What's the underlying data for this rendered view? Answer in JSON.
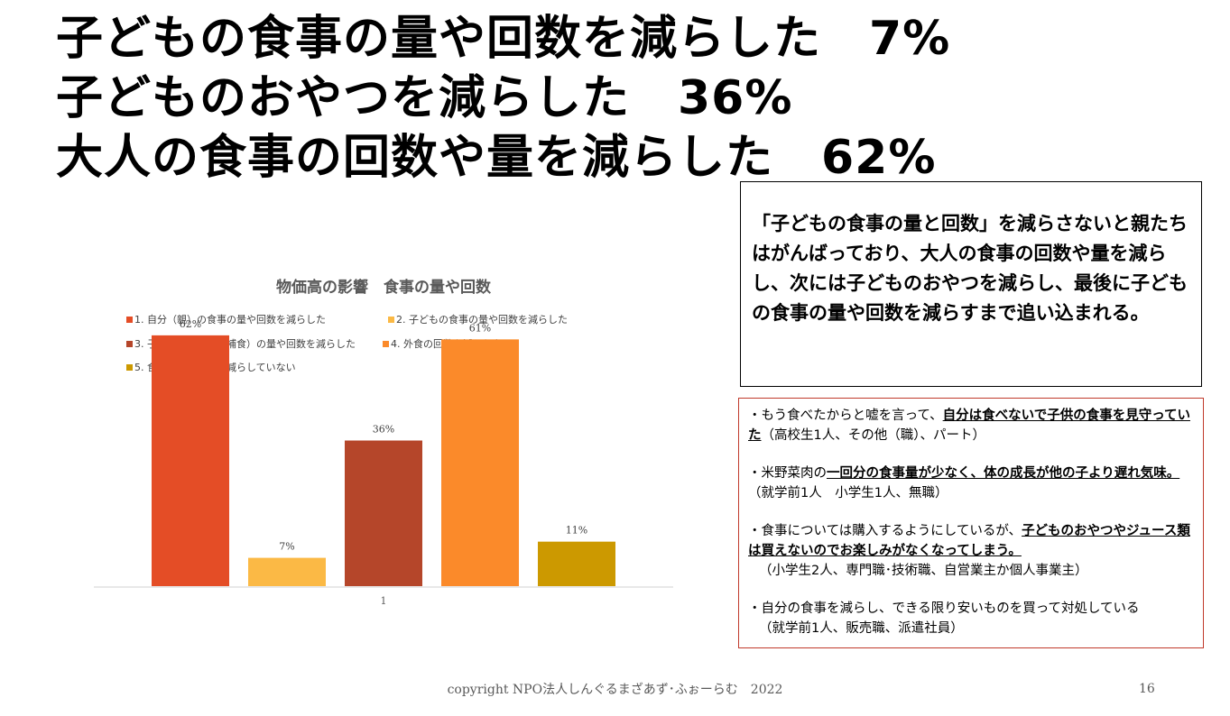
{
  "headline": {
    "line1": "子どもの食事の量や回数を減らした　7%",
    "line2": "子どものおやつを減らした　36%",
    "line3": "大人の食事の回数や量を減らした　62%"
  },
  "chart_data": {
    "type": "bar",
    "title": "物価高の影響　食事の量や回数",
    "categories": [
      "1"
    ],
    "series": [
      {
        "name": "1. 自分（親）の食事の量や回数を減らした",
        "values": [
          62
        ],
        "label": "62%",
        "color": "#e44d26"
      },
      {
        "name": "2. 子どもの食事の量や回数を減らした",
        "values": [
          7
        ],
        "label": "7%",
        "color": "#fbb945"
      },
      {
        "name": "3. 子どものおやつ（補食）の量や回数を減らした",
        "values": [
          36
        ],
        "label": "36%",
        "color": "#b5462a"
      },
      {
        "name": "4. 外食の回数を減らした",
        "values": [
          61
        ],
        "label": "61%",
        "color": "#fb8a2a"
      },
      {
        "name": "5. 食事の量や回数を減らしていない",
        "values": [
          11
        ],
        "label": "11%",
        "color": "#cc9900"
      }
    ],
    "ylim": [
      0,
      70
    ],
    "grid": false,
    "legend_position": "top"
  },
  "summary": {
    "text": "「子どもの食事の量と回数」を減らさないと親たちはがんばっており、大人の食事の回数や量を減らし、次には子どものおやつを減らし、最後に子どもの食事の量や回数を減らすまで追い込まれる。"
  },
  "quotes": [
    {
      "pre": "・もう食べたからと嘘を言って、",
      "emph": "自分は食べないで子供の食事を見守っていた",
      "post": "（高校生1人、その他（職）、パート）",
      "sub": ""
    },
    {
      "pre": "・米野菜肉の",
      "emph": "一回分の食事量が少なく、体の成長が他の子より遅れ気味。",
      "post": "（就学前1人　小学生1人、無職）",
      "sub": ""
    },
    {
      "pre": "・食事については購入するようにしているが、",
      "emph": "子どものおやつやジュース類は買えないのでお楽しみがなくなってしまう。",
      "post": "",
      "sub": "（小学生2人、専門職･技術職、自営業主か個人事業主）"
    },
    {
      "pre": "・自分の食事を減らし、できる限り安いものを買って対処している",
      "emph": "",
      "post": "",
      "sub": "（就学前1人、販売職、派遣社員）"
    }
  ],
  "footer": {
    "copyright": "copyright NPO法人しんぐるまざあず･ふぉーらむ　2022",
    "page": "16"
  }
}
